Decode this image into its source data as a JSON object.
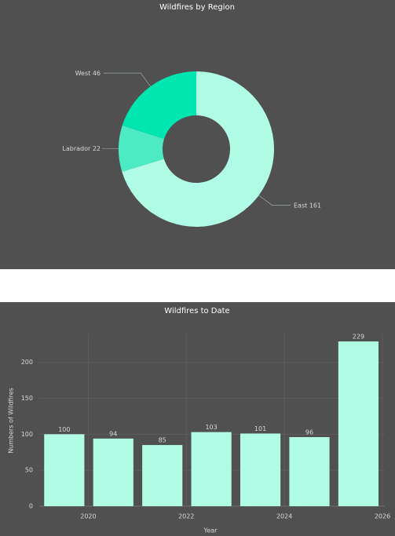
{
  "chart_data": [
    {
      "type": "pie",
      "title": "Wildfires by Region",
      "donut": true,
      "categories": [
        "East",
        "Labrador",
        "West"
      ],
      "values": [
        161,
        22,
        46
      ],
      "colors": [
        "#b0fce4",
        "#4debc4",
        "#00e6b0"
      ]
    },
    {
      "type": "bar",
      "title": "Wildfires to Date",
      "xlabel": "Year",
      "ylabel": "Numbers of Wildfires",
      "x": [
        2019,
        2020,
        2021,
        2022,
        2023,
        2024,
        2025
      ],
      "values": [
        100,
        94,
        85,
        103,
        101,
        96,
        229
      ],
      "color": "#b0fce4",
      "xlim": [
        2019,
        2026
      ],
      "xticks": [
        2020,
        2022,
        2024,
        2026
      ],
      "ylim": [
        0,
        240
      ],
      "yticks": [
        0,
        50,
        100,
        150,
        200
      ],
      "grid": true
    }
  ]
}
